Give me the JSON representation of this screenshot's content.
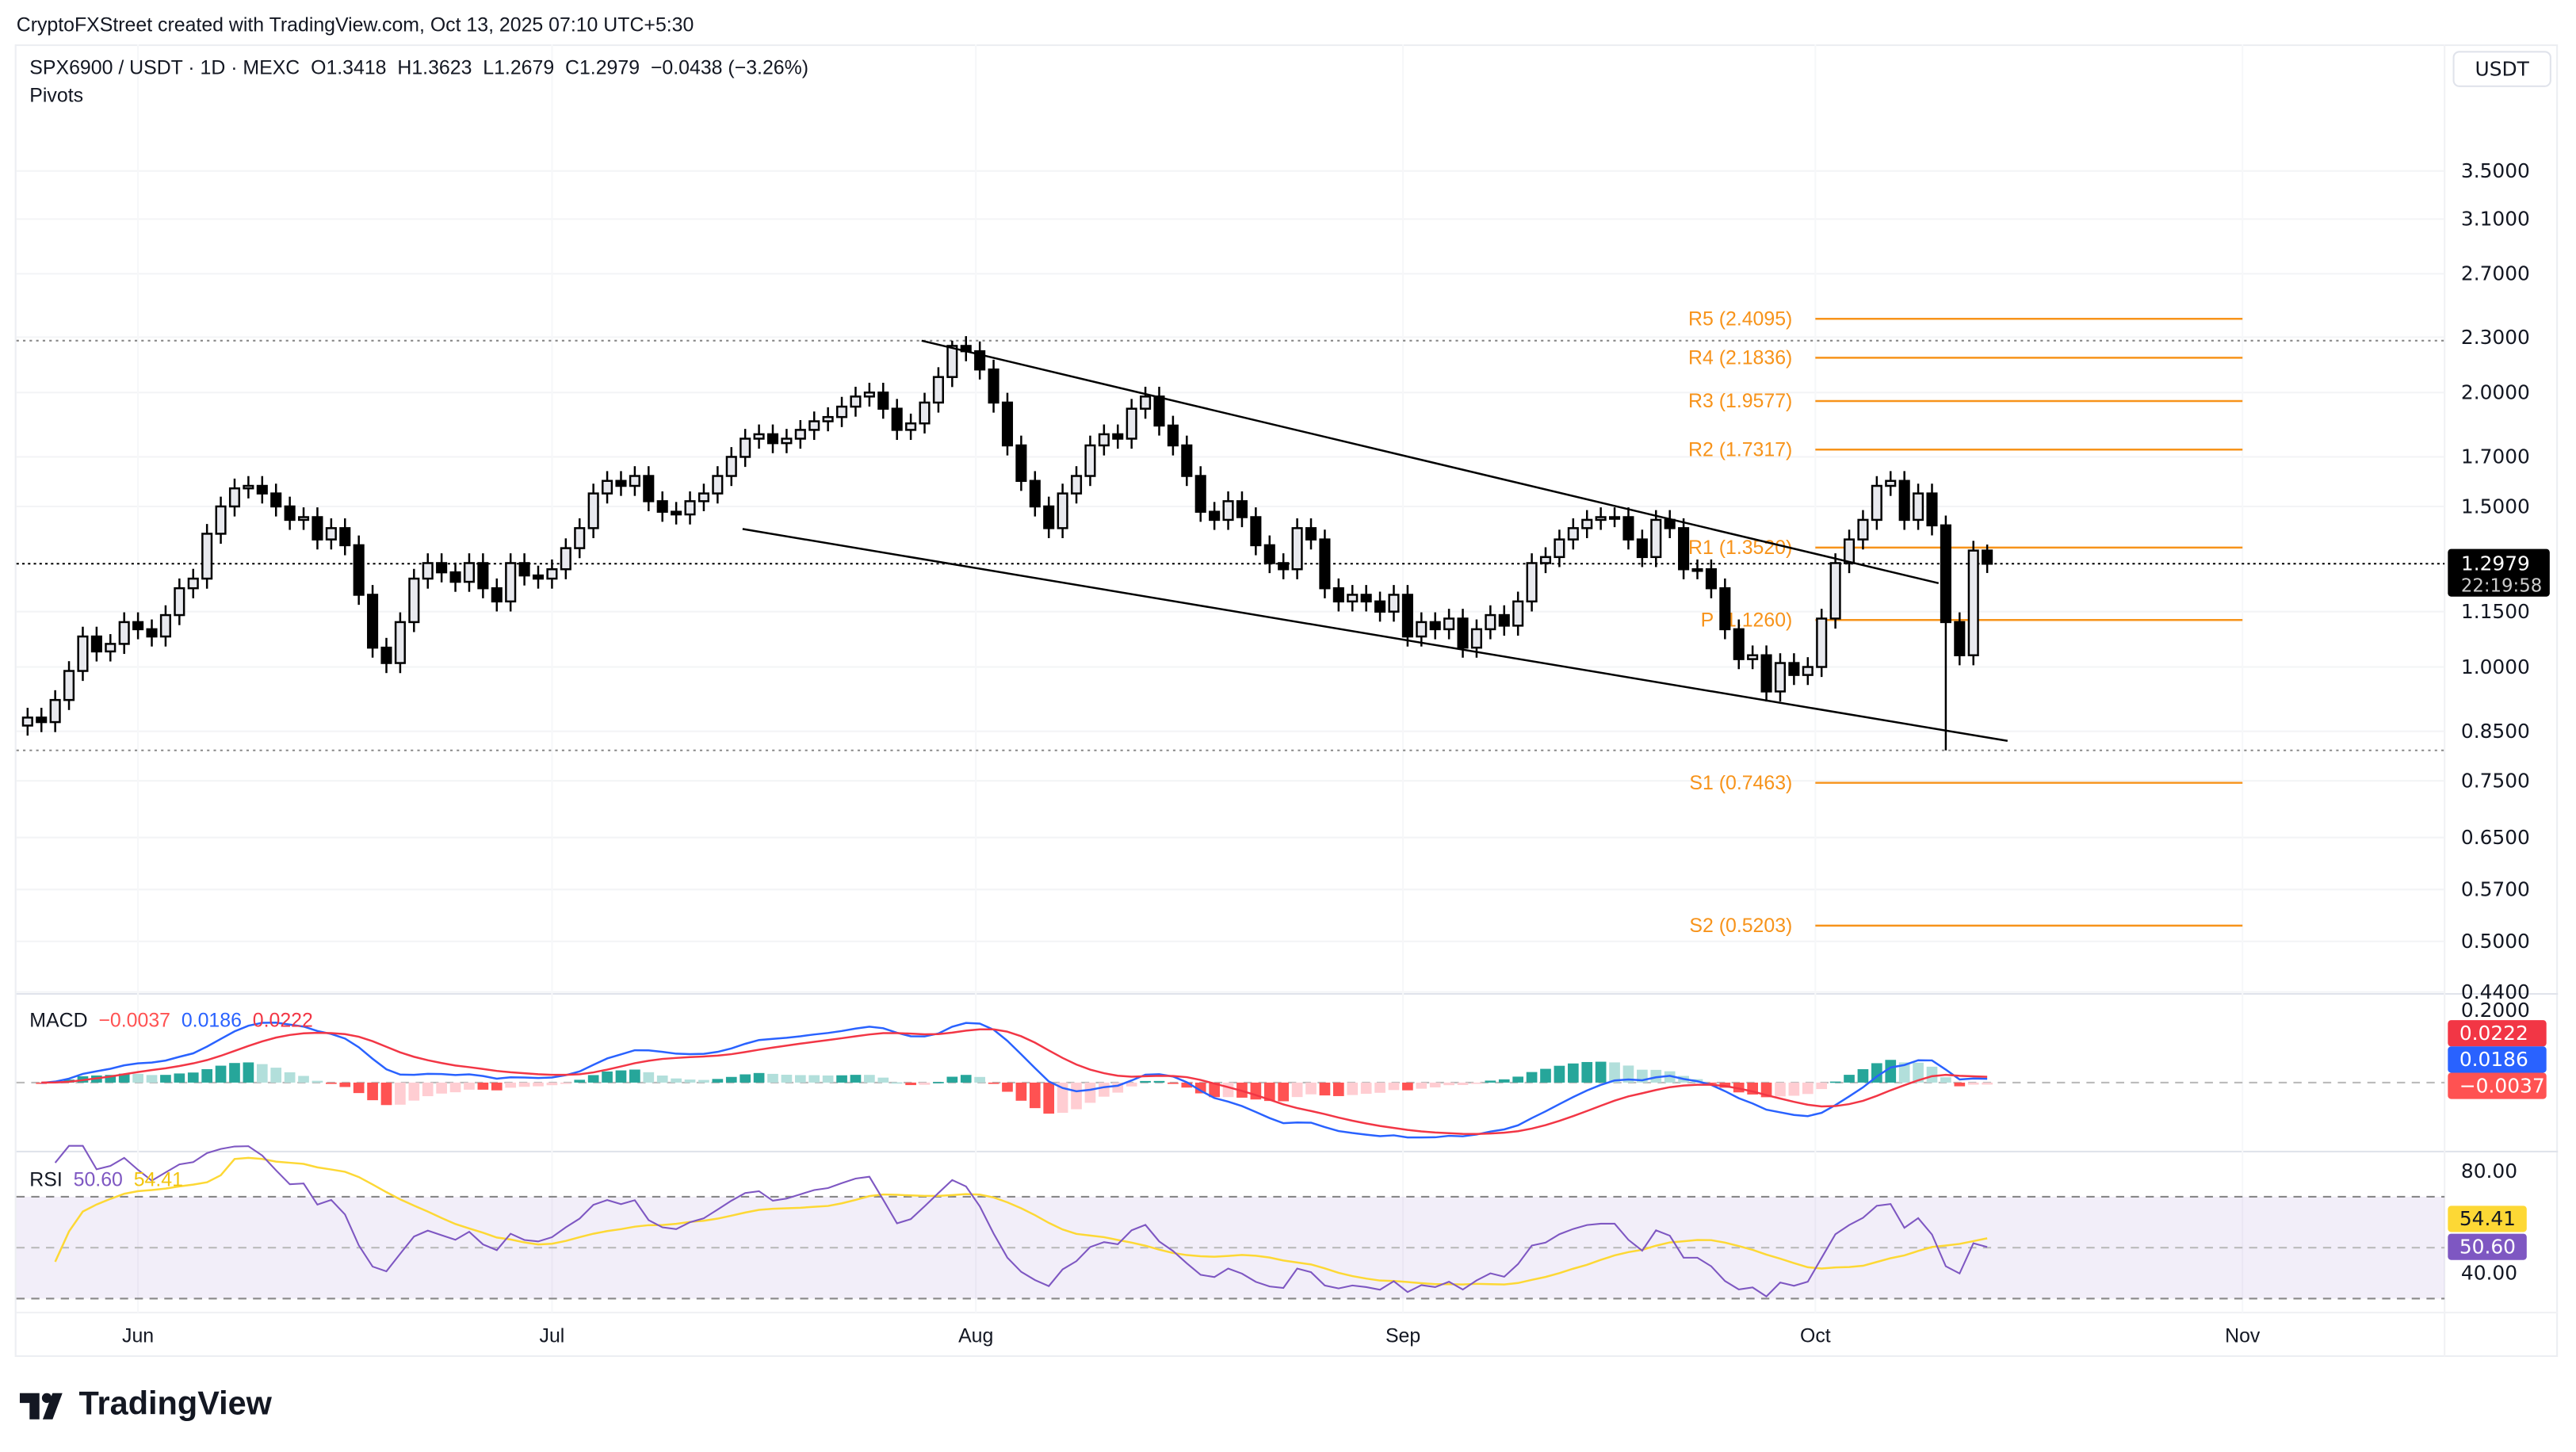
{
  "credit": "CryptoFXStreet created with TradingView.com, Oct 13, 2025 07:10 UTC+5:30",
  "legend": {
    "symbol": "SPX6900 / USDT · 1D · MEXC",
    "open": "O1.3418",
    "high": "H1.3623",
    "low": "L1.2679",
    "close": "C1.2979",
    "change": "−0.0438 (−3.26%)",
    "indicator": "Pivots"
  },
  "currency_button": "USDT",
  "price_label": {
    "value": "1.2979",
    "countdown": "22:19:58"
  },
  "brand": "TradingView",
  "colors": {
    "up_body": "#e8e9ee",
    "down_body": "#000000",
    "pivot": "#f7931a",
    "macd": "#2962ff",
    "signal": "#f23645",
    "rsi": "#7e57c2",
    "rsi_ma": "#fdd835"
  },
  "chart_data": [
    {
      "type": "candlestick",
      "scale": "log",
      "start_date": "2025-05-24",
      "closes": [
        0.88,
        0.87,
        0.92,
        0.99,
        1.08,
        1.04,
        1.06,
        1.12,
        1.1,
        1.08,
        1.14,
        1.22,
        1.25,
        1.4,
        1.5,
        1.57,
        1.58,
        1.55,
        1.5,
        1.45,
        1.46,
        1.38,
        1.42,
        1.36,
        1.2,
        1.05,
        1.01,
        1.12,
        1.25,
        1.3,
        1.27,
        1.24,
        1.3,
        1.22,
        1.18,
        1.3,
        1.26,
        1.25,
        1.28,
        1.35,
        1.42,
        1.55,
        1.6,
        1.58,
        1.62,
        1.52,
        1.48,
        1.47,
        1.52,
        1.55,
        1.62,
        1.7,
        1.78,
        1.8,
        1.76,
        1.78,
        1.82,
        1.86,
        1.88,
        1.93,
        1.98,
        2.0,
        1.92,
        1.82,
        1.85,
        1.95,
        2.08,
        2.25,
        2.22,
        2.12,
        1.95,
        1.75,
        1.6,
        1.5,
        1.42,
        1.55,
        1.62,
        1.75,
        1.8,
        1.78,
        1.92,
        1.98,
        1.84,
        1.75,
        1.62,
        1.48,
        1.45,
        1.52,
        1.46,
        1.36,
        1.3,
        1.28,
        1.42,
        1.38,
        1.22,
        1.18,
        1.2,
        1.18,
        1.15,
        1.2,
        1.08,
        1.12,
        1.1,
        1.13,
        1.05,
        1.1,
        1.14,
        1.11,
        1.18,
        1.3,
        1.32,
        1.38,
        1.42,
        1.45,
        1.46,
        1.46,
        1.38,
        1.32,
        1.45,
        1.42,
        1.28,
        1.28,
        1.22,
        1.1,
        1.02,
        1.03,
        0.94,
        1.01,
        0.98,
        1.0,
        1.13,
        1.3,
        1.38,
        1.45,
        1.58,
        1.6,
        1.45,
        1.55,
        1.43,
        1.12,
        1.03,
        1.3418,
        1.2979
      ],
      "range_high": 2.28,
      "range_low": 0.81,
      "last_candle": {
        "open": 1.3418,
        "high": 1.3623,
        "low": 1.2679,
        "close": 1.2979
      },
      "y_ticks": [
        "3.5000",
        "3.1000",
        "2.7000",
        "2.3000",
        "2.0000",
        "1.7000",
        "1.5000",
        "1.1500",
        "1.0000",
        "0.8500",
        "0.7500",
        "0.6500",
        "0.5700",
        "0.5000",
        "0.4400"
      ],
      "x_ticks": [
        "Jun",
        "Jul",
        "Aug",
        "Sep",
        "Oct",
        "Nov"
      ],
      "pivots": [
        {
          "label": "R5 (2.4095)",
          "value": 2.4095
        },
        {
          "label": "R4 (2.1836)",
          "value": 2.1836
        },
        {
          "label": "R3 (1.9577)",
          "value": 1.9577
        },
        {
          "label": "R2 (1.7317)",
          "value": 1.7317
        },
        {
          "label": "R1 (1.3520)",
          "value": 1.352
        },
        {
          "label": "P (1.1260)",
          "value": 1.126
        },
        {
          "label": "S1 (0.7463)",
          "value": 0.7463
        },
        {
          "label": "S2 (0.5203)",
          "value": 0.5203
        }
      ],
      "trendlines": [
        {
          "name": "upper",
          "from": {
            "date": "Jul 30",
            "price": 2.28
          },
          "to": {
            "date": "Oct 10",
            "price": 1.19
          }
        },
        {
          "name": "lower",
          "from": {
            "date": "Jul 17",
            "price": 1.43
          },
          "to": {
            "date": "Oct 15",
            "price": 0.83
          }
        }
      ]
    },
    {
      "type": "line",
      "title": "MACD",
      "values": {
        "histogram": "−0.0037",
        "macd": "0.0186",
        "signal": "0.0222"
      },
      "y_ticks": [
        "0.2000"
      ],
      "y_labels": [
        "0.0222",
        "0.0186",
        "−0.0037"
      ]
    },
    {
      "type": "line",
      "title": "RSI",
      "values": {
        "rsi": "50.60",
        "rsi_ma": "54.41"
      },
      "y_ticks": [
        "80.00",
        "40.00"
      ],
      "bands": [
        70,
        50,
        30
      ]
    }
  ]
}
